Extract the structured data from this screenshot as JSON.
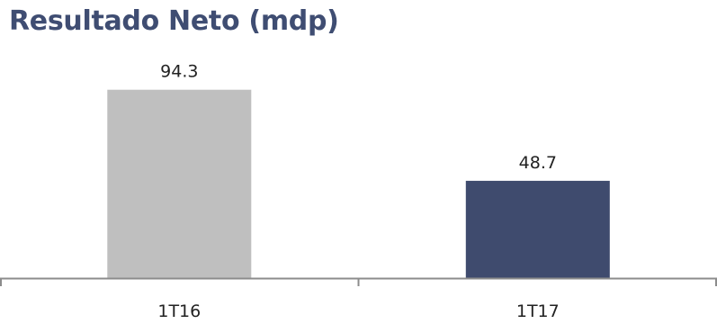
{
  "chart_data": {
    "type": "bar",
    "title": "Resultado Neto (mdp)",
    "categories": [
      "1T16",
      "1T17"
    ],
    "values": [
      94.3,
      48.7
    ],
    "value_labels": [
      "94.3",
      "48.7"
    ],
    "bar_colors": [
      "#bfbfbf",
      "#3f4b6e"
    ],
    "title_color": "#3f4d72",
    "xlabel": "",
    "ylabel": "",
    "ylim": [
      0,
      100
    ],
    "grid": false,
    "legend": "none"
  }
}
